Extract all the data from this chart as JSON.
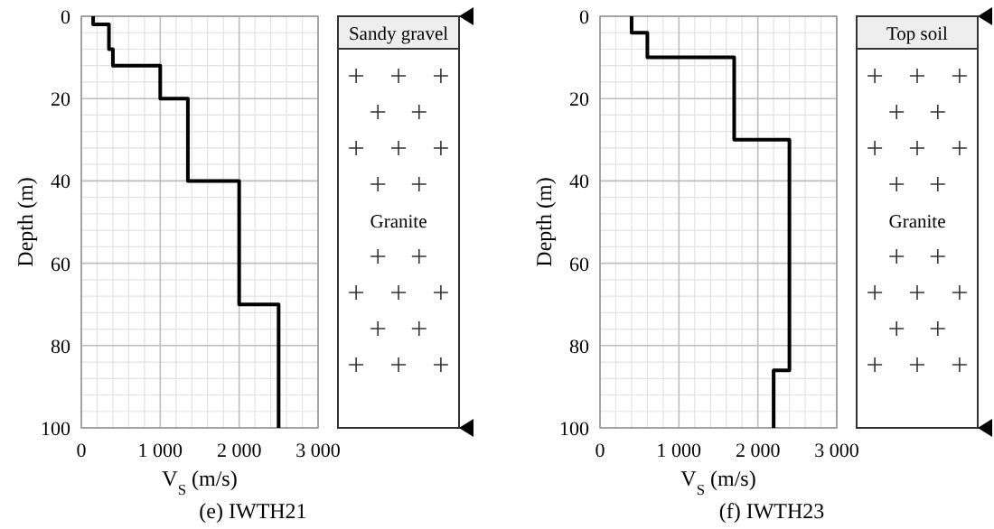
{
  "chart_data": [
    {
      "type": "line",
      "title": "(e) IWTH21",
      "xlabel": "V$_{S}$ (m/s)",
      "ylabel": "Depth (m)",
      "xlim": [
        0,
        3000
      ],
      "ylim": [
        100,
        0
      ],
      "xticks": [
        0,
        {
          "value": 1000,
          "label": "1 000"
        },
        {
          "value": 2000,
          "label": "2 000"
        },
        {
          "value": 3000,
          "label": "3 000"
        }
      ],
      "yticks": [
        0,
        20,
        40,
        60,
        80,
        100
      ],
      "grid": true,
      "annotations": [
        "Sandy gravel",
        "Granite"
      ],
      "series": [
        {
          "color": "#000000",
          "x": [
            150,
            150,
            350,
            350,
            400,
            400,
            1000,
            1000,
            1350,
            1350,
            2000,
            2000,
            2500,
            2500
          ],
          "values": [
            0,
            2,
            2,
            8,
            8,
            12,
            12,
            20,
            20,
            40,
            40,
            70,
            70,
            100
          ]
        }
      ]
    },
    {
      "type": "line",
      "title": "(f) IWTH23",
      "xlabel": "V$_{S}$ (m/s)",
      "ylabel": "Depth (m)",
      "xlim": [
        0,
        3000
      ],
      "ylim": [
        100,
        0
      ],
      "xticks": [
        0,
        {
          "value": 1000,
          "label": "1 000"
        },
        {
          "value": 2000,
          "label": "2 000"
        },
        {
          "value": 3000,
          "label": "3 000"
        }
      ],
      "yticks": [
        0,
        20,
        40,
        60,
        80,
        100
      ],
      "grid": true,
      "annotations": [
        "Top soil",
        "Granite"
      ],
      "series": [
        {
          "color": "#000000",
          "x": [
            400,
            400,
            600,
            600,
            1700,
            1700,
            2400,
            2400,
            2200,
            2200
          ],
          "values": [
            0,
            4,
            4,
            10,
            10,
            30,
            30,
            86,
            86,
            100
          ]
        }
      ]
    }
  ]
}
